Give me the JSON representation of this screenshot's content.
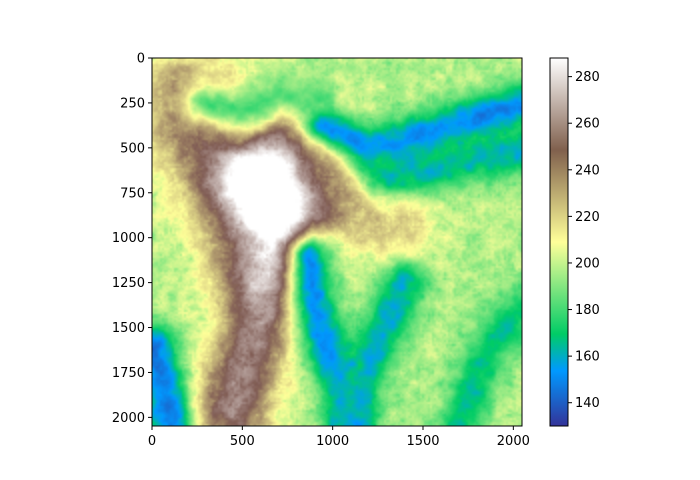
{
  "chart_data": {
    "type": "heatmap",
    "title": "",
    "xlabel": "",
    "ylabel": "",
    "colormap": "terrain",
    "x_extent": [
      0,
      2048
    ],
    "y_extent": [
      2048,
      0
    ],
    "x_ticks": [
      0,
      500,
      1000,
      1500,
      2000
    ],
    "y_ticks": [
      0,
      250,
      500,
      750,
      1000,
      1250,
      1500,
      1750,
      2000
    ],
    "x_tick_labels": [
      "0",
      "500",
      "1000",
      "1500",
      "2000"
    ],
    "y_tick_labels": [
      "0",
      "250",
      "500",
      "750",
      "1000",
      "1250",
      "1500",
      "1750",
      "2000"
    ],
    "colorbar": {
      "range": [
        130,
        288
      ],
      "ticks": [
        140,
        160,
        180,
        200,
        220,
        240,
        260,
        280
      ],
      "tick_labels": [
        "140",
        "160",
        "180",
        "200",
        "220",
        "240",
        "260",
        "280"
      ]
    },
    "features": {
      "ridges": [
        {
          "points": [
            [
              580,
              700
            ],
            [
              650,
              850
            ],
            [
              720,
              1000
            ],
            [
              680,
              1200
            ],
            [
              600,
              1450
            ],
            [
              520,
              1700
            ],
            [
              440,
              1950
            ]
          ],
          "elev": 262
        },
        {
          "points": [
            [
              620,
              650
            ],
            [
              720,
              520
            ],
            [
              820,
              430
            ],
            [
              950,
              420
            ]
          ],
          "elev": 245
        },
        {
          "points": [
            [
              820,
              880
            ],
            [
              1000,
              800
            ],
            [
              1200,
              860
            ],
            [
              1350,
              960
            ]
          ],
          "elev": 225
        },
        {
          "points": [
            [
              180,
              200
            ],
            [
              260,
              450
            ],
            [
              320,
              700
            ],
            [
              420,
              950
            ],
            [
              480,
              1150
            ]
          ],
          "elev": 232
        }
      ],
      "peaks": [
        {
          "x": 740,
          "y": 780,
          "elev": 272,
          "r": 230
        },
        {
          "x": 200,
          "y": 350,
          "elev": 250,
          "r": 230
        },
        {
          "x": 500,
          "y": 250,
          "elev": 238,
          "r": 180
        }
      ],
      "valleys": [
        {
          "points": [
            [
              950,
              370
            ],
            [
              1200,
              500
            ],
            [
              1450,
              450
            ],
            [
              1700,
              360
            ],
            [
              2048,
              270
            ]
          ],
          "elev": 150
        },
        {
          "points": [
            [
              1300,
              650
            ],
            [
              1550,
              620
            ],
            [
              1800,
              560
            ],
            [
              2048,
              520
            ]
          ],
          "elev": 162
        },
        {
          "points": [
            [
              880,
              1100
            ],
            [
              900,
              1350
            ],
            [
              960,
              1600
            ],
            [
              1060,
              1850
            ],
            [
              1100,
              2048
            ]
          ],
          "elev": 152
        },
        {
          "points": [
            [
              1400,
              1250
            ],
            [
              1300,
              1500
            ],
            [
              1180,
              1750
            ],
            [
              1100,
              2000
            ]
          ],
          "elev": 160
        },
        {
          "points": [
            [
              0,
              1600
            ],
            [
              60,
              1800
            ],
            [
              100,
              2048
            ]
          ],
          "elev": 145
        },
        {
          "points": [
            [
              2048,
              1400
            ],
            [
              1850,
              1650
            ],
            [
              1700,
              2048
            ]
          ],
          "elev": 166
        },
        {
          "points": [
            [
              300,
              250
            ],
            [
              500,
              300
            ],
            [
              700,
              200
            ],
            [
              900,
              220
            ]
          ],
          "elev": 182
        }
      ],
      "base_elev": 200
    }
  }
}
